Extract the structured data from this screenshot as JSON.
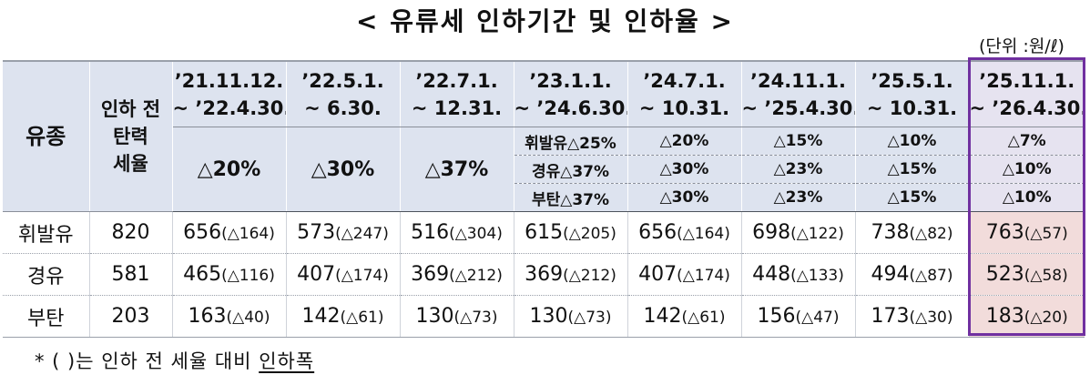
{
  "title": "< 유류세 인하기간 및 인하율 >",
  "unit": "(단위 :원/ℓ)",
  "header": {
    "fuel": "유종",
    "base_line1": "인하 전",
    "base_line2": "탄력",
    "base_line3": "세율"
  },
  "periods": [
    {
      "l1": "’21.11.12.",
      "l2": "~ ’22.4.30."
    },
    {
      "l1": "’22.5.1.",
      "l2": "~ 6.30."
    },
    {
      "l1": "’22.7.1.",
      "l2": "~ 12.31."
    },
    {
      "l1": "’23.1.1.",
      "l2": "~ ’24.6.30."
    },
    {
      "l1": "’24.7.1.",
      "l2": "~ 10.31."
    },
    {
      "l1": "’24.11.1.",
      "l2": "~ ’25.4.30."
    },
    {
      "l1": "’25.5.1.",
      "l2": "~ 10.31."
    },
    {
      "l1": "’25.11.1.",
      "l2": "~ ’26.4.30."
    }
  ],
  "uniform_rates": [
    "△20%",
    "△30%",
    "△37%"
  ],
  "rates": {
    "gasoline": [
      "휘발유△25%",
      "△20%",
      "△15%",
      "△10%",
      "△7%"
    ],
    "diesel": [
      "경유△37%",
      "△30%",
      "△23%",
      "△15%",
      "△10%"
    ],
    "butane": [
      "부탄△37%",
      "△30%",
      "△23%",
      "△15%",
      "△10%"
    ]
  },
  "rows": [
    {
      "fuel": "휘발유",
      "base": "820",
      "cells": [
        {
          "v": "656",
          "d": "(△164)"
        },
        {
          "v": "573",
          "d": "(△247)"
        },
        {
          "v": "516",
          "d": "(△304)"
        },
        {
          "v": "615",
          "d": "(△205)"
        },
        {
          "v": "656",
          "d": "(△164)"
        },
        {
          "v": "698",
          "d": "(△122)"
        },
        {
          "v": "738",
          "d": "(△82)"
        },
        {
          "v": "763",
          "d": "(△57)"
        }
      ]
    },
    {
      "fuel": "경유",
      "base": "581",
      "cells": [
        {
          "v": "465",
          "d": "(△116)"
        },
        {
          "v": "407",
          "d": "(△174)"
        },
        {
          "v": "369",
          "d": "(△212)"
        },
        {
          "v": "369",
          "d": "(△212)"
        },
        {
          "v": "407",
          "d": "(△174)"
        },
        {
          "v": "448",
          "d": "(△133)"
        },
        {
          "v": "494",
          "d": "(△87)"
        },
        {
          "v": "523",
          "d": "(△58)"
        }
      ]
    },
    {
      "fuel": "부탄",
      "base": "203",
      "cells": [
        {
          "v": "163",
          "d": "(△40)"
        },
        {
          "v": "142",
          "d": "(△61)"
        },
        {
          "v": "130",
          "d": "(△73)"
        },
        {
          "v": "130",
          "d": "(△73)"
        },
        {
          "v": "142",
          "d": "(△61)"
        },
        {
          "v": "156",
          "d": "(△47)"
        },
        {
          "v": "173",
          "d": "(△30)"
        },
        {
          "v": "183",
          "d": "(△20)"
        }
      ]
    }
  ],
  "note": {
    "prefix": "* ( )는 인하 전 세율 대비 ",
    "underlined": "인하폭"
  },
  "colors": {
    "highlight_border": "#7030a0",
    "highlight_fill": "#f2dcdb",
    "header_fill": "#dde3ef"
  }
}
